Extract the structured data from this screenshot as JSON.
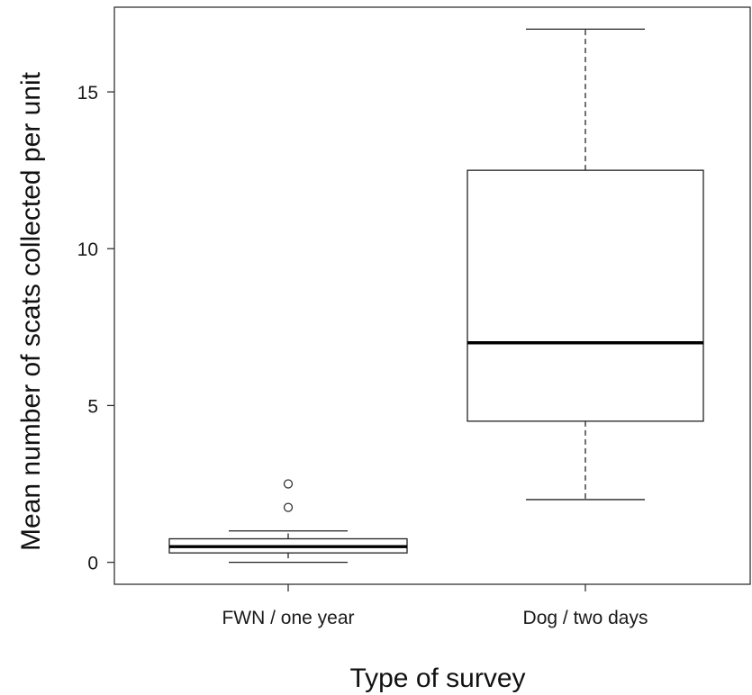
{
  "chart_data": {
    "type": "boxplot",
    "xlabel": "Type of survey",
    "ylabel": "Mean number of scats collected per unit",
    "ylim": [
      -0.7,
      17.7
    ],
    "yticks": [
      0,
      5,
      10,
      15
    ],
    "grid": false,
    "categories": [
      "FWN / one year",
      "Dog / two days"
    ],
    "boxes": [
      {
        "category": "FWN / one year",
        "whisker_low": 0,
        "q1": 0.3,
        "median": 0.5,
        "q3": 0.75,
        "whisker_high": 1.0,
        "outliers": [
          1.75,
          2.5
        ]
      },
      {
        "category": "Dog / two days",
        "whisker_low": 2,
        "q1": 4.5,
        "median": 7,
        "q3": 12.5,
        "whisker_high": 17,
        "outliers": []
      }
    ]
  }
}
